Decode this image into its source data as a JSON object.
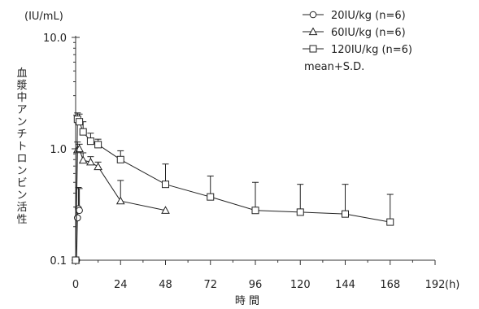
{
  "chart_data": {
    "type": "line",
    "yscale": "log",
    "y_unit": "(IU/mL)",
    "ylabel": "血漿中アンチトロンビン活性",
    "xlabel": "時 間",
    "x_unit": "(h)",
    "xlim": [
      0,
      192
    ],
    "ylim": [
      0.1,
      10.0
    ],
    "xticks": [
      0,
      24,
      48,
      72,
      96,
      120,
      144,
      168,
      192
    ],
    "yticks": [
      {
        "value": 0.1,
        "label": "0.1"
      },
      {
        "value": 1.0,
        "label": "1.0"
      },
      {
        "value": 10.0,
        "label": "10.0"
      }
    ],
    "legend_position": "top-right",
    "legend_note": "mean+S.D.",
    "series": [
      {
        "name": "20IU/kg (n=6)",
        "marker": "circle",
        "x": [
          0,
          0.5,
          1,
          1.5,
          2
        ],
        "y": [
          0.1,
          0.1,
          0.24,
          0.29,
          0.28
        ],
        "sd_upper": [
          null,
          null,
          0.3,
          0.45,
          0.44
        ]
      },
      {
        "name": "60IU/kg (n=6)",
        "marker": "triangle",
        "x": [
          0,
          1,
          2,
          4,
          8,
          12,
          24,
          48
        ],
        "y": [
          0.1,
          0.98,
          1.0,
          0.79,
          0.76,
          0.69,
          0.34,
          0.28
        ],
        "sd_upper": [
          null,
          1.15,
          1.1,
          0.92,
          0.85,
          0.76,
          0.52,
          null
        ]
      },
      {
        "name": "120IU/kg (n=6)",
        "marker": "square",
        "x": [
          0,
          1,
          2,
          4,
          8,
          12,
          24,
          48,
          72,
          96,
          120,
          144,
          168
        ],
        "y": [
          0.1,
          1.84,
          1.75,
          1.42,
          1.17,
          1.09,
          0.8,
          0.48,
          0.37,
          0.28,
          0.27,
          0.26,
          0.22
        ],
        "sd_upper": [
          null,
          2.1,
          2.05,
          1.75,
          1.38,
          1.22,
          0.96,
          0.73,
          0.57,
          0.5,
          0.48,
          0.48,
          0.39
        ]
      }
    ]
  }
}
